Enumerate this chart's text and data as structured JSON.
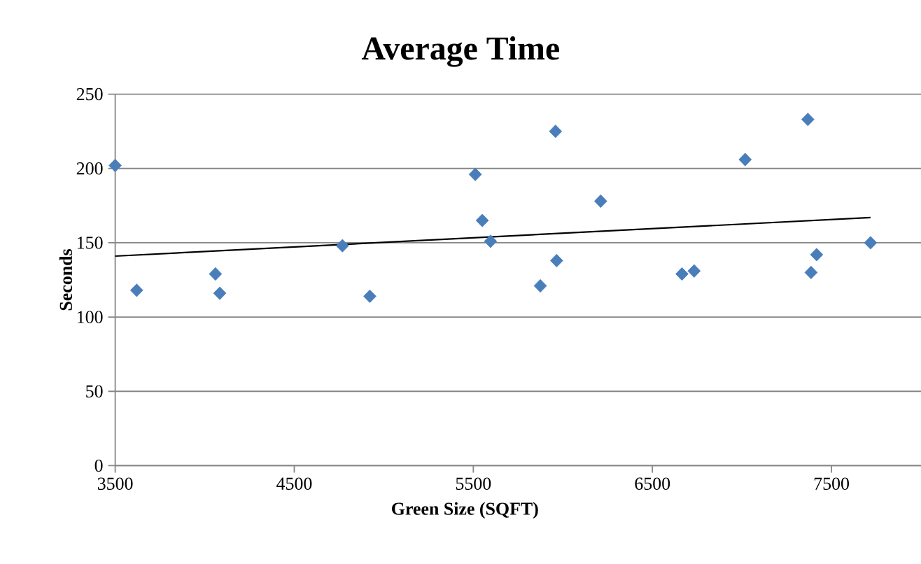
{
  "chart_data": {
    "type": "scatter",
    "title": "Average Time",
    "xlabel": "Green Size (SQFT)",
    "ylabel": "Seconds",
    "xlim": [
      3500,
      8000
    ],
    "xticks": [
      3500,
      4500,
      5500,
      6500,
      7500
    ],
    "ylim": [
      0,
      250
    ],
    "yticks": [
      0,
      50,
      100,
      150,
      200,
      250
    ],
    "grid": "y",
    "marker": "diamond",
    "series": [
      {
        "color": "#4a7ebb",
        "x": [
          3500,
          3620,
          4060,
          4084,
          4769,
          4922,
          5511,
          5550,
          5596,
          5874,
          5959,
          5965,
          6211,
          6665,
          6733,
          7018,
          7368,
          7386,
          7417,
          7718
        ],
        "values": [
          202,
          118,
          129,
          116,
          148,
          114,
          196,
          165,
          151,
          121,
          225,
          138,
          178,
          129,
          131,
          206,
          233,
          130,
          142,
          150
        ]
      },
      {
        "type": "line",
        "color": "#000000",
        "marker": "none",
        "x": [
          3500,
          7718
        ],
        "values": [
          141,
          167
        ]
      }
    ]
  }
}
